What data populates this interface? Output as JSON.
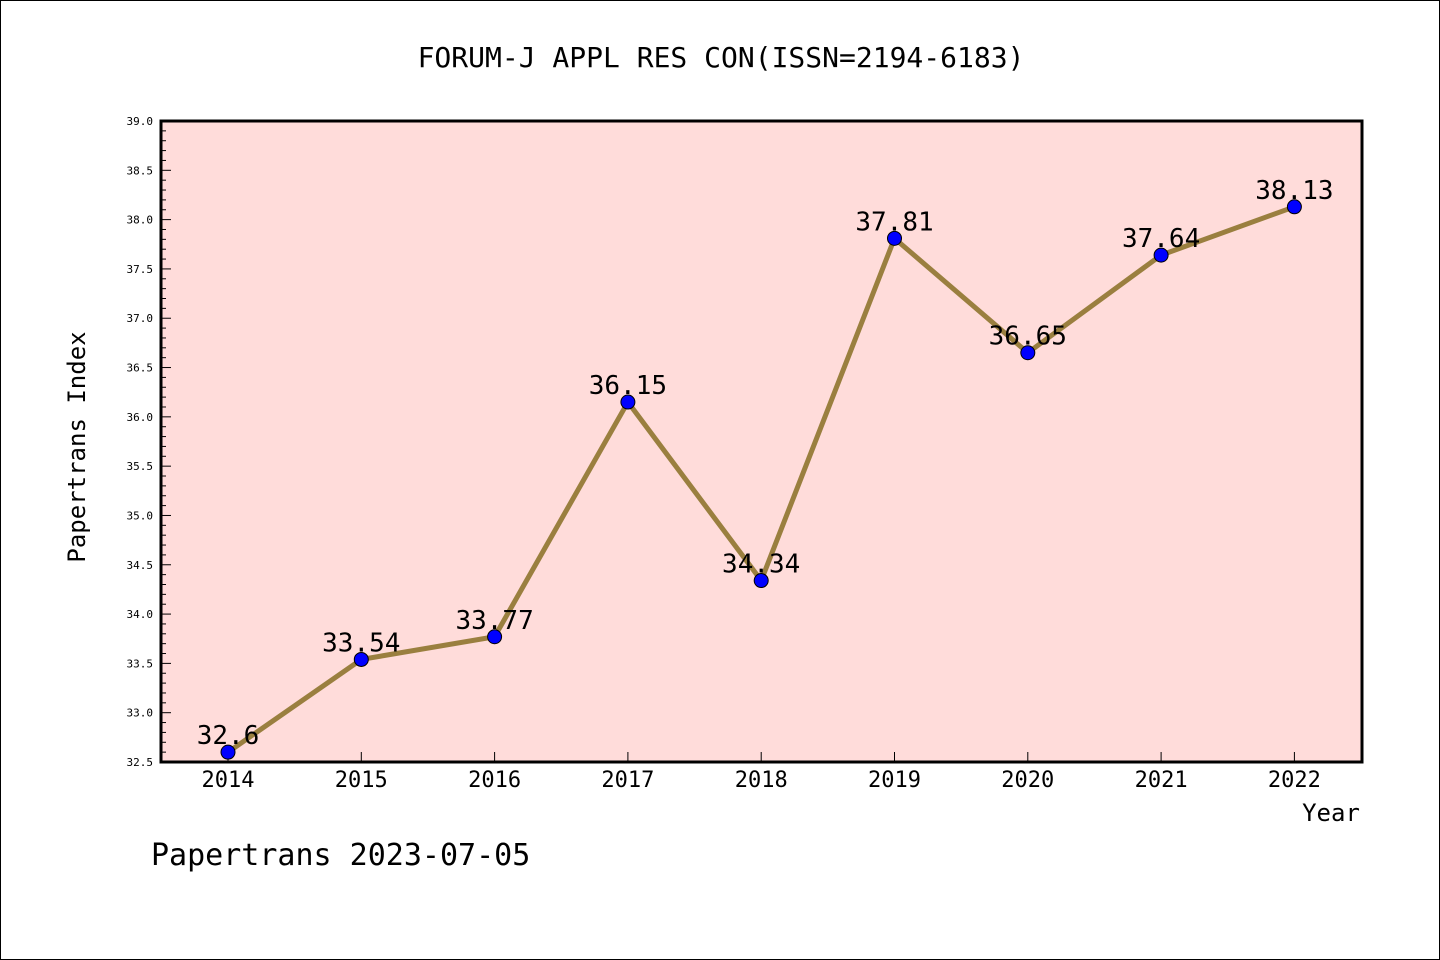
{
  "chart_data": {
    "type": "line",
    "title": "FORUM-J APPL RES CON(ISSN=2194-6183)",
    "xlabel": "Year",
    "ylabel": "Papertrans Index",
    "categories": [
      "2014",
      "2015",
      "2016",
      "2017",
      "2018",
      "2019",
      "2020",
      "2021",
      "2022"
    ],
    "values": [
      32.6,
      33.54,
      33.77,
      36.15,
      34.34,
      37.81,
      36.65,
      37.64,
      38.13
    ],
    "data_labels": [
      "32.6",
      "33.54",
      "33.77",
      "36.15",
      "34.34",
      "37.81",
      "36.65",
      "37.64",
      "38.13"
    ],
    "ylim": [
      32.5,
      39.0
    ],
    "yticks": [
      "32.5",
      "33.0",
      "33.5",
      "34.0",
      "34.5",
      "35.0",
      "35.5",
      "36.0",
      "36.5",
      "37.0",
      "37.5",
      "38.0",
      "38.5",
      "39.0"
    ],
    "grid": false,
    "colors": {
      "plot_background": "#FFDCDA",
      "line": "#9A7F3F",
      "marker": "#0000FF"
    }
  },
  "footer": "Papertrans 2023-07-05"
}
